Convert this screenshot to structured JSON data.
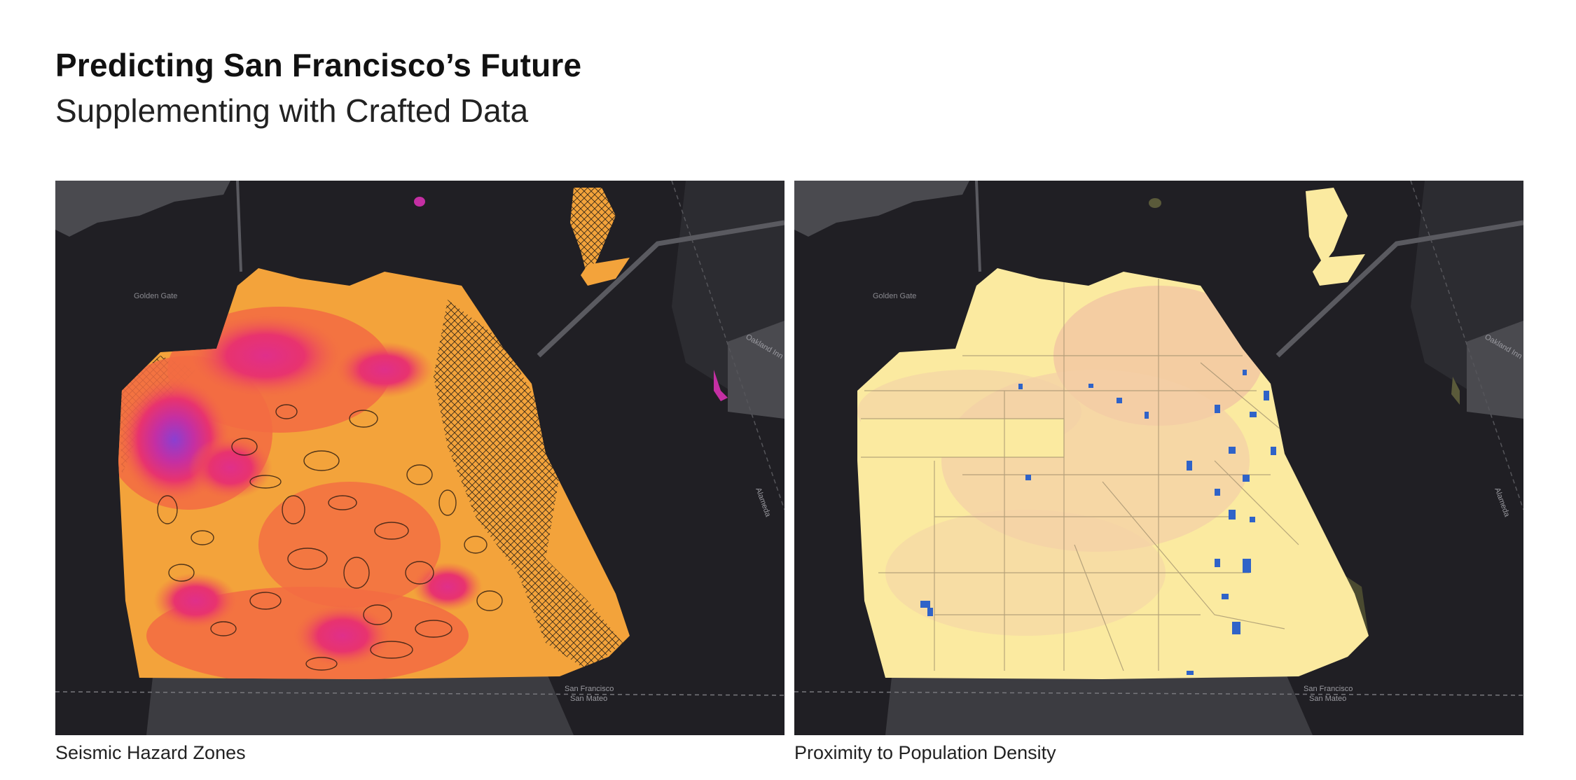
{
  "page": {
    "title": "Predicting San Francisco’s Future",
    "subtitle": "Supplementing with Crafted Data"
  },
  "maps": [
    {
      "caption": "Seismic Hazard Zones",
      "labels": {
        "golden_gate": "Golden Gate",
        "oakland": "Oakland Inn",
        "county_line_1": "San Francisco",
        "county_line_2": "San Mateo",
        "alameda": "Alameda"
      }
    },
    {
      "caption": "Proximity to Population Density",
      "labels": {
        "golden_gate": "Golden Gate",
        "oakland": "Oakland Inn",
        "county_line_1": "San Francisco",
        "county_line_2": "San Mateo",
        "alameda": "Alameda"
      }
    }
  ],
  "colors": {
    "background_dark": "#201f24",
    "land_gray": "#4a4a4f",
    "seismic_orange": "#f3a33b",
    "seismic_coral": "#f26b43",
    "seismic_pink": "#e8336e",
    "seismic_magenta": "#c42fa3",
    "seismic_purple": "#8b3fd1",
    "density_yellow": "#fbeaa0",
    "density_pink": "#f1c3a3",
    "density_blue": "#2f63c8"
  }
}
